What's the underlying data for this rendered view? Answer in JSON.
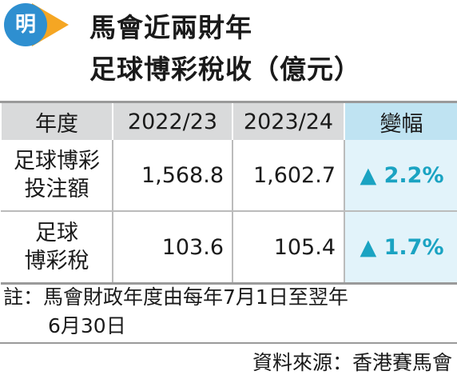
{
  "logo": "明",
  "header": {
    "title_lines": [
      "馬會近兩財年",
      "足球博彩稅收（億元）"
    ]
  },
  "table": {
    "columns": [
      "年度",
      "2022/23",
      "2023/24",
      "變幅"
    ],
    "rows": [
      {
        "label_lines": [
          "足球博彩",
          "投注額"
        ],
        "cells": [
          "1,568.8",
          "1,602.7",
          "▲ 2.2%"
        ]
      },
      {
        "label_lines": [
          "足球",
          "博彩稅"
        ],
        "cells": [
          "103.6",
          "105.4",
          "▲ 1.7%"
        ]
      }
    ]
  },
  "note_lines": [
    "註：馬會財政年度由每年7月1日至翌年",
    "6月30日"
  ],
  "source": "資料來源：香港賽馬會"
}
